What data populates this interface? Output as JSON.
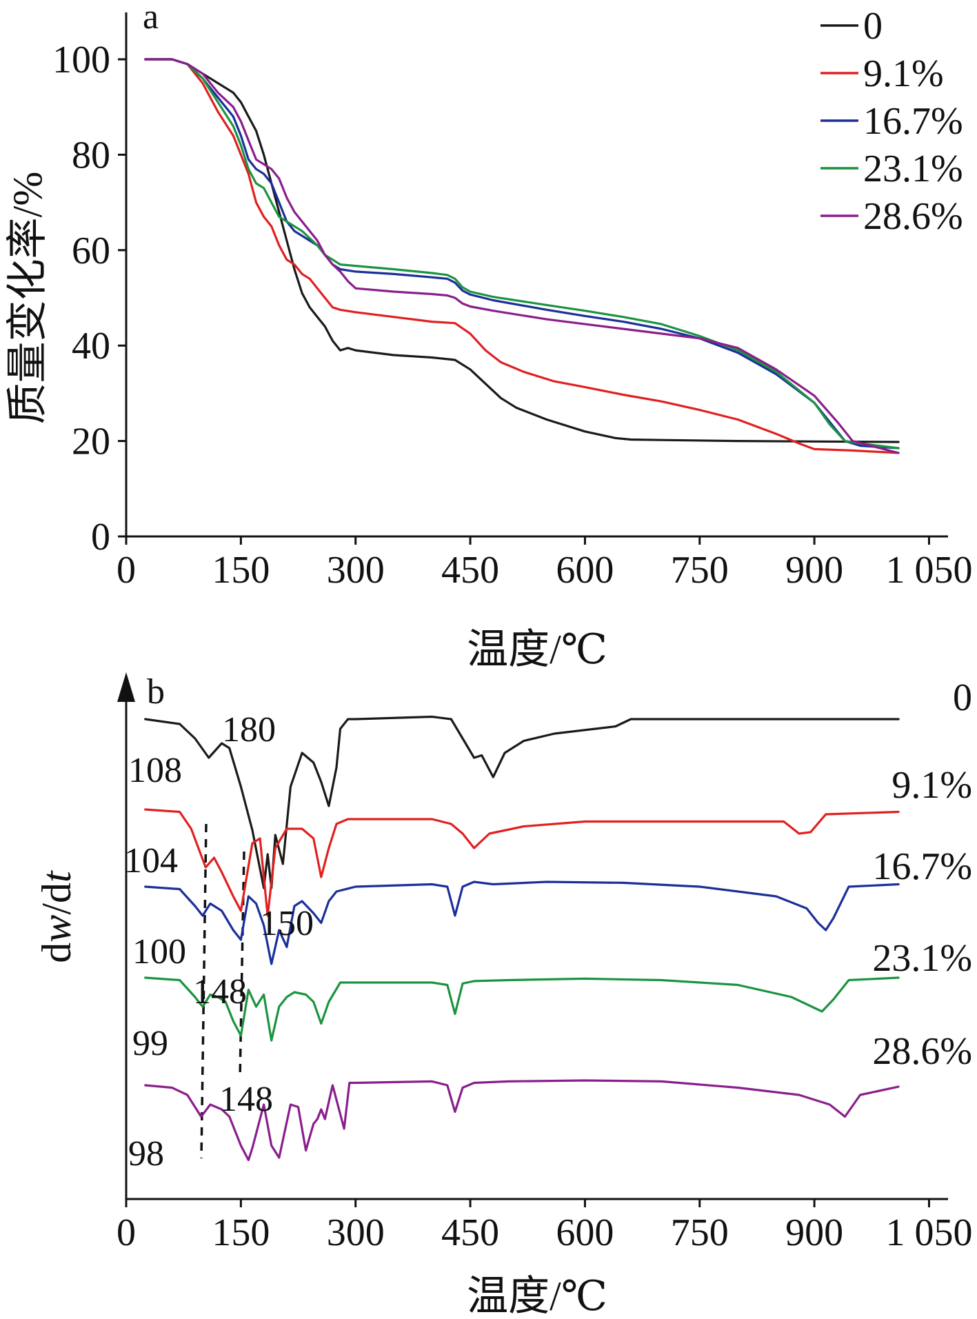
{
  "chart_data": [
    {
      "panel": "a",
      "type": "line",
      "xlabel": "温度/℃",
      "ylabel": "质量变化率/%",
      "xlim": [
        0,
        1050
      ],
      "ylim": [
        0,
        110
      ],
      "x_tick_labels": [
        "0",
        "150",
        "300",
        "450",
        "600",
        "750",
        "900",
        "1 050"
      ],
      "y_tick_labels": [
        "0",
        "20",
        "40",
        "60",
        "80",
        "100"
      ],
      "legend_position": "top-right",
      "series": [
        {
          "name": "0",
          "color": "#1a1a1a",
          "x": [
            25,
            60,
            80,
            100,
            120,
            140,
            150,
            160,
            170,
            180,
            190,
            200,
            210,
            220,
            230,
            240,
            250,
            260,
            270,
            280,
            290,
            300,
            350,
            400,
            430,
            450,
            470,
            490,
            510,
            550,
            600,
            640,
            660,
            700,
            800,
            900,
            1010
          ],
          "y": [
            100,
            100,
            99,
            97,
            95,
            93,
            91,
            88,
            85,
            80,
            74,
            68,
            62,
            56,
            51,
            48,
            46,
            44,
            41,
            39,
            39.5,
            39,
            38,
            37.5,
            37,
            35,
            32,
            29,
            27,
            24.5,
            22,
            20.6,
            20.3,
            20.2,
            20,
            19.9,
            19.8
          ]
        },
        {
          "name": "9.1%",
          "color": "#e02020",
          "x": [
            25,
            60,
            80,
            100,
            120,
            140,
            150,
            160,
            170,
            180,
            190,
            200,
            210,
            220,
            230,
            240,
            250,
            260,
            270,
            280,
            300,
            350,
            400,
            430,
            450,
            470,
            490,
            520,
            560,
            600,
            650,
            700,
            750,
            800,
            850,
            880,
            900,
            950,
            1010
          ],
          "y": [
            100,
            100,
            99,
            95,
            89,
            84,
            80,
            76,
            70,
            67,
            65,
            61,
            58,
            57,
            55,
            54,
            52,
            50,
            48,
            47.5,
            47,
            46,
            45,
            44.7,
            42.5,
            39,
            36.5,
            34.5,
            32.5,
            31.3,
            29.7,
            28.3,
            26.5,
            24.5,
            21.5,
            19.5,
            18.3,
            18,
            17.5
          ]
        },
        {
          "name": "16.7%",
          "color": "#1a2f9a",
          "x": [
            25,
            60,
            80,
            100,
            120,
            140,
            150,
            160,
            170,
            180,
            190,
            200,
            210,
            220,
            230,
            240,
            250,
            260,
            270,
            280,
            300,
            350,
            400,
            420,
            430,
            440,
            450,
            480,
            550,
            600,
            650,
            700,
            750,
            800,
            850,
            900,
            920,
            940,
            960,
            1010
          ],
          "y": [
            100,
            100,
            99,
            96,
            92,
            88,
            84,
            79,
            77,
            76,
            74,
            70,
            66,
            64,
            63,
            62,
            61,
            59,
            57,
            56,
            55.5,
            55,
            54.3,
            54,
            53.2,
            51.5,
            50.7,
            49.5,
            47.5,
            46.2,
            45,
            43.5,
            41.5,
            38.5,
            34,
            28,
            24,
            20,
            19,
            18.5
          ]
        },
        {
          "name": "23.1%",
          "color": "#1a9440",
          "x": [
            25,
            60,
            80,
            100,
            120,
            140,
            150,
            160,
            170,
            180,
            190,
            200,
            210,
            220,
            230,
            240,
            250,
            260,
            270,
            280,
            300,
            350,
            400,
            420,
            430,
            440,
            450,
            480,
            550,
            600,
            650,
            700,
            750,
            800,
            850,
            900,
            920,
            940,
            960,
            1010
          ],
          "y": [
            100,
            100,
            99,
            96,
            91,
            86,
            82,
            77,
            74,
            73,
            70,
            67,
            66,
            65,
            64,
            62.5,
            61,
            59,
            58,
            57,
            56.7,
            56,
            55.2,
            54.8,
            54,
            52.2,
            51.3,
            50.2,
            48.5,
            47.3,
            46,
            44.5,
            42,
            39,
            34.5,
            28,
            23.5,
            20,
            19.5,
            18.5
          ]
        },
        {
          "name": "28.6%",
          "color": "#8a1e8c",
          "x": [
            25,
            60,
            80,
            100,
            120,
            140,
            150,
            160,
            170,
            180,
            190,
            200,
            210,
            220,
            230,
            240,
            250,
            260,
            270,
            280,
            290,
            300,
            350,
            400,
            420,
            430,
            440,
            450,
            480,
            550,
            600,
            650,
            700,
            750,
            800,
            850,
            900,
            930,
            950,
            1010
          ],
          "y": [
            100,
            100,
            99,
            97,
            93,
            90,
            87,
            83,
            79,
            78,
            77,
            75,
            71,
            68,
            66,
            64,
            62,
            59,
            57,
            55.5,
            53.5,
            52,
            51.3,
            50.8,
            50.5,
            50,
            48.8,
            48.2,
            47.3,
            45.5,
            44.5,
            43.5,
            42.5,
            41.5,
            39.5,
            35,
            29.5,
            24,
            20,
            17.5
          ]
        }
      ]
    },
    {
      "panel": "b",
      "type": "line",
      "xlabel": "温度/℃",
      "ylabel": "dw/dt",
      "xlim": [
        0,
        1050
      ],
      "ylim": [
        0,
        110
      ],
      "x_tick_labels": [
        "0",
        "150",
        "300",
        "450",
        "600",
        "750",
        "900",
        "1 050"
      ],
      "series": [
        {
          "name": "0",
          "color": "#1a1a1a",
          "x": [
            25,
            70,
            90,
            108,
            125,
            135,
            150,
            165,
            180,
            185,
            190,
            195,
            205,
            215,
            230,
            245,
            255,
            265,
            275,
            280,
            290,
            300,
            400,
            425,
            440,
            455,
            465,
            480,
            495,
            520,
            560,
            640,
            660,
            700,
            800,
            900,
            1010
          ],
          "y": [
            100,
            99,
            96,
            92,
            95,
            94,
            86,
            77,
            65,
            72,
            65,
            76,
            70,
            86,
            93,
            91,
            87,
            82,
            90,
            98,
            100,
            100,
            100.5,
            100,
            96,
            92,
            92.5,
            88,
            93,
            95.5,
            97,
            98.5,
            100,
            100,
            100,
            100,
            100
          ]
        },
        {
          "name": "9.1%",
          "color": "#e02020",
          "x": [
            25,
            70,
            85,
            104,
            115,
            125,
            140,
            150,
            165,
            175,
            185,
            195,
            210,
            230,
            245,
            255,
            265,
            275,
            290,
            400,
            425,
            440,
            455,
            475,
            520,
            600,
            660,
            760,
            860,
            880,
            895,
            915,
            1010
          ],
          "y": [
            100,
            99.5,
            96,
            88,
            90,
            87,
            82,
            79,
            93,
            94,
            78,
            92,
            96,
            96,
            94,
            86,
            92,
            97,
            98,
            98,
            97,
            95,
            92,
            95,
            96.5,
            97.5,
            97.5,
            97.5,
            97.5,
            95,
            95.3,
            99,
            99.5
          ]
        },
        {
          "name": "16.7%",
          "color": "#1a2f9a",
          "x": [
            25,
            70,
            90,
            100,
            110,
            125,
            140,
            150,
            160,
            170,
            180,
            190,
            200,
            210,
            220,
            230,
            245,
            255,
            265,
            275,
            300,
            400,
            420,
            430,
            440,
            455,
            480,
            550,
            650,
            750,
            850,
            890,
            905,
            915,
            925,
            945,
            1010
          ],
          "y": [
            100,
            99.5,
            96,
            94,
            96.5,
            95,
            91,
            89,
            98,
            96.5,
            92,
            84,
            91,
            87.5,
            96,
            97,
            94.5,
            92.5,
            97,
            99,
            100,
            100.5,
            100,
            94,
            100,
            101,
            100.5,
            101,
            100.8,
            100,
            98,
            95.5,
            92.5,
            91,
            93.5,
            100,
            100.5
          ]
        },
        {
          "name": "23.1%",
          "color": "#1a9440",
          "x": [
            25,
            70,
            90,
            100,
            110,
            120,
            130,
            140,
            150,
            160,
            170,
            180,
            190,
            200,
            210,
            220,
            235,
            245,
            255,
            265,
            280,
            400,
            420,
            430,
            440,
            455,
            500,
            600,
            700,
            800,
            870,
            890,
            910,
            925,
            945,
            1010
          ],
          "y": [
            100,
            99.5,
            96,
            94,
            96.5,
            96,
            95,
            91,
            88,
            97.5,
            94,
            96.5,
            87,
            94,
            96,
            97,
            96.5,
            95,
            90.5,
            95,
            99,
            99,
            98.5,
            92.5,
            98.8,
            99.3,
            99.5,
            99.8,
            99.5,
            98.5,
            96,
            94.5,
            93,
            95.5,
            99.5,
            100
          ]
        },
        {
          "name": "28.6%",
          "color": "#8a1e8c",
          "x": [
            25,
            60,
            80,
            98,
            110,
            125,
            135,
            150,
            160,
            165,
            180,
            190,
            200,
            215,
            225,
            235,
            245,
            250,
            255,
            260,
            270,
            285,
            292,
            300,
            400,
            420,
            430,
            440,
            455,
            500,
            600,
            700,
            800,
            880,
            920,
            940,
            960,
            1010
          ],
          "y": [
            100,
            99.5,
            98,
            93.5,
            96,
            95,
            93.5,
            87.5,
            84.5,
            87,
            96,
            87.5,
            85,
            96,
            95.5,
            86.5,
            92,
            93,
            95,
            93,
            100,
            91,
            100.5,
            100.5,
            100.8,
            100,
            94.5,
            99.5,
            100.5,
            100.8,
            101,
            100.8,
            99.5,
            98,
            96,
            93.5,
            98,
            99.7
          ]
        }
      ],
      "annotations": [
        "108",
        "180",
        "104",
        "150",
        "100",
        "148",
        "99",
        "148",
        "98"
      ],
      "series_labels": [
        "0",
        "9.1%",
        "16.7%",
        "23.1%",
        "28.6%"
      ]
    }
  ]
}
